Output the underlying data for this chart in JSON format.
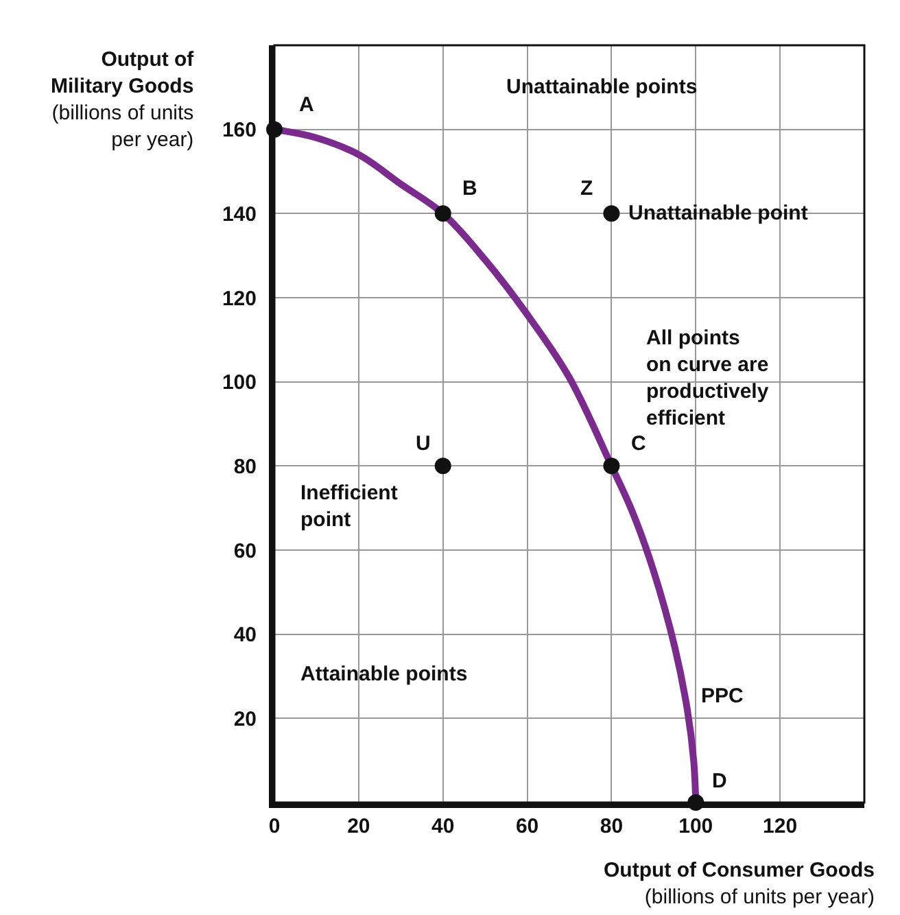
{
  "chart_data": {
    "type": "line",
    "xlabel": "Output of Consumer Goods\n(billions of units per year)",
    "ylabel": "Output of\nMilitary Goods\n(billions of units\nper year)",
    "xlim": [
      0,
      140
    ],
    "ylim": [
      0,
      180
    ],
    "xticks": [
      0,
      20,
      40,
      60,
      80,
      100,
      120
    ],
    "yticks": [
      20,
      40,
      60,
      80,
      100,
      120,
      140,
      160
    ],
    "grid": true,
    "series": [
      {
        "type": "line",
        "color": "#7b2a8e",
        "x": [
          0,
          10,
          20,
          30,
          40,
          50,
          60,
          70,
          80,
          85,
          90,
          95,
          98,
          99.5,
          100
        ],
        "values": [
          160,
          158,
          154,
          147,
          140,
          129,
          116,
          101,
          80,
          69,
          55,
          37,
          22,
          10,
          0
        ],
        "line_style": "solid",
        "marker": "none"
      },
      {
        "type": "scatter",
        "color": "#111111",
        "x": [
          0,
          40,
          80,
          40,
          80,
          100
        ],
        "values": [
          160,
          140,
          140,
          80,
          80,
          0
        ],
        "marker": "circle"
      }
    ],
    "annotations": [
      {
        "text": "A",
        "x": 0,
        "y": 160
      },
      {
        "text": "B",
        "x": 40,
        "y": 140
      },
      {
        "text": "Z",
        "x": 80,
        "y": 140
      },
      {
        "text": "Unattainable point",
        "x": 80,
        "y": 140
      },
      {
        "text": "U",
        "x": 40,
        "y": 80
      },
      {
        "text": "C",
        "x": 80,
        "y": 80
      },
      {
        "text": "D",
        "x": 100,
        "y": 0
      },
      {
        "text": "PPC",
        "x": 98,
        "y": 22
      },
      "Unattainable points",
      "All points\non curve are\nproductively\nefficient",
      "Inefficient\npoint",
      "Attainable points"
    ]
  }
}
